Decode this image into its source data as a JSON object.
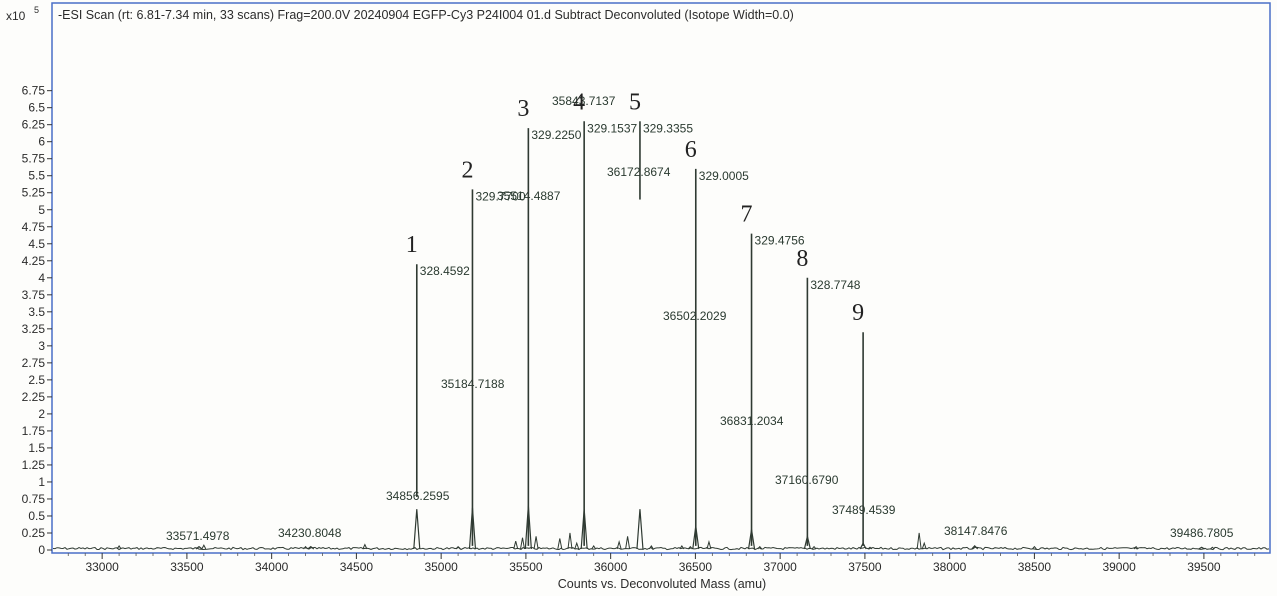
{
  "chart_data": {
    "type": "line",
    "title": "-ESI Scan (rt: 6.81-7.34 min, 33 scans) Frag=200.0V 20240904 EGFP-Cy3 P24I004 01.d  Subtract Deconvoluted (Isotope Width=0.0)",
    "xlabel": "Counts vs. Deconvoluted Mass (amu)",
    "ylabel": "",
    "y_multiplier": "x10",
    "y_exponent": "5",
    "xlim": [
      32700,
      39900
    ],
    "ylim": [
      0,
      6.9
    ],
    "x_ticks": [
      "33000",
      "33500",
      "34000",
      "34500",
      "35000",
      "35500",
      "36000",
      "36500",
      "37000",
      "37500",
      "38000",
      "38500",
      "39000",
      "39500"
    ],
    "y_ticks": [
      "0",
      "0.25",
      "0.5",
      "0.75",
      "1",
      "1.25",
      "1.5",
      "1.75",
      "2",
      "2.25",
      "2.5",
      "2.75",
      "3",
      "3.25",
      "3.5",
      "3.75",
      "4",
      "4.25",
      "4.5",
      "4.75",
      "5",
      "5.25",
      "5.5",
      "5.75",
      "6",
      "6.25",
      "6.5",
      "6.75"
    ],
    "grid": false,
    "color": "#2f3a32",
    "frame_color": "#4a6fc8",
    "peaks": [
      {
        "x": 33571.4978,
        "y": 0.05,
        "label": "33571.4978"
      },
      {
        "x": 34230.8048,
        "y": 0.05,
        "label": "34230.8048"
      },
      {
        "x": 34856.2595,
        "y": 0.6,
        "label": "34856.2595"
      },
      {
        "x": 35184.7188,
        "y": 0.62,
        "label": "35184.7188"
      },
      {
        "x": 35514.4887,
        "y": 0.65,
        "label": "35514.4887"
      },
      {
        "x": 35843.7137,
        "y": 0.6,
        "label": "35843.7137"
      },
      {
        "x": 36172.8674,
        "y": 0.6,
        "label": "36172.8674"
      },
      {
        "x": 36502.2029,
        "y": 0.35,
        "label": "36502.2029"
      },
      {
        "x": 36831.2034,
        "y": 0.3,
        "label": "36831.2034"
      },
      {
        "x": 37160.679,
        "y": 0.2,
        "label": "37160.6790"
      },
      {
        "x": 37489.4539,
        "y": 0.1,
        "label": "37489.4539"
      },
      {
        "x": 38147.8476,
        "y": 0.06,
        "label": "38147.8476"
      },
      {
        "x": 39486.7805,
        "y": 0.04,
        "label": "39486.7805"
      }
    ],
    "charge_lines": [
      {
        "number": "1",
        "x": 34856.2595,
        "y_top": 4.2,
        "y_bottom": 0.78,
        "value": "328.4592"
      },
      {
        "number": "2",
        "x": 35184.7188,
        "y_top": 5.3,
        "y_bottom": 0.06,
        "value": "329.7700"
      },
      {
        "number": "3",
        "x": 35514.4887,
        "y_top": 6.2,
        "y_bottom": 0.06,
        "value": "329.2250"
      },
      {
        "number": "4",
        "x": 35843.7137,
        "y_top": 6.3,
        "y_bottom": 0.06,
        "value": "329.1537"
      },
      {
        "number": "5",
        "x": 36172.8674,
        "y_top": 6.3,
        "y_bottom": 5.15,
        "value": "329.3355"
      },
      {
        "number": "6",
        "x": 36502.2029,
        "y_top": 5.6,
        "y_bottom": 0.06,
        "value": "329.0005"
      },
      {
        "number": "7",
        "x": 36831.2034,
        "y_top": 4.65,
        "y_bottom": 0.06,
        "value": "329.4756"
      },
      {
        "number": "8",
        "x": 37160.679,
        "y_top": 4.0,
        "y_bottom": 0.06,
        "value": "328.7748"
      },
      {
        "number": "9",
        "x": 37489.4539,
        "y_top": 3.2,
        "y_bottom": 0.06,
        "value": ""
      }
    ]
  }
}
